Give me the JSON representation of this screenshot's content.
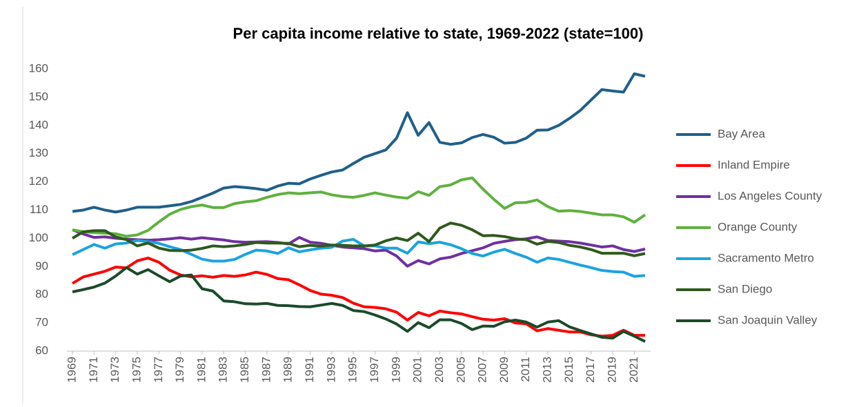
{
  "chart_data": {
    "type": "line",
    "title": "Per capita income relative to state, 1969-2022 (state=100)",
    "x": [
      1969,
      1970,
      1971,
      1972,
      1973,
      1974,
      1975,
      1976,
      1977,
      1978,
      1979,
      1980,
      1981,
      1982,
      1983,
      1984,
      1985,
      1986,
      1987,
      1988,
      1989,
      1990,
      1991,
      1992,
      1993,
      1994,
      1995,
      1996,
      1997,
      1998,
      1999,
      2000,
      2001,
      2002,
      2003,
      2004,
      2005,
      2006,
      2007,
      2008,
      2009,
      2010,
      2011,
      2012,
      2013,
      2014,
      2015,
      2016,
      2017,
      2018,
      2019,
      2020,
      2021,
      2022
    ],
    "xlim": [
      1969,
      2022
    ],
    "xticks": [
      1969,
      1971,
      1973,
      1975,
      1977,
      1979,
      1981,
      1983,
      1985,
      1987,
      1989,
      1991,
      1993,
      1995,
      1997,
      1999,
      2001,
      2003,
      2005,
      2007,
      2009,
      2011,
      2013,
      2015,
      2017,
      2019,
      2021
    ],
    "ylim": [
      60,
      160
    ],
    "yticks": [
      60,
      70,
      80,
      90,
      100,
      110,
      120,
      130,
      140,
      150,
      160
    ],
    "grid": false,
    "legend": "right",
    "series": [
      {
        "name": "Bay Area",
        "color": "#1f5f8b",
        "values": [
          109.5,
          110,
          111,
          110,
          109.3,
          110,
          111,
          111,
          111,
          111.5,
          112,
          113,
          114.5,
          116,
          117.8,
          118.3,
          118,
          117.6,
          117,
          118.5,
          119.5,
          119.3,
          121,
          122.3,
          123.5,
          124.2,
          126.5,
          128.7,
          130,
          131.3,
          135.5,
          144.5,
          136.5,
          141,
          134,
          133.3,
          133.8,
          135.7,
          136.8,
          135.8,
          133.7,
          134,
          135.5,
          138.3,
          138.4,
          140,
          142.5,
          145.3,
          149,
          152.7,
          152.2,
          151.8,
          158.3,
          157.4
        ]
      },
      {
        "name": "Inland Empire",
        "color": "#ff0000",
        "values": [
          84,
          86.3,
          87.3,
          88.3,
          89.8,
          89.5,
          92,
          93,
          91.5,
          88.7,
          87,
          86.3,
          86.7,
          86.2,
          86.8,
          86.5,
          87,
          88,
          87.2,
          85.7,
          85.3,
          83.5,
          81.5,
          80.2,
          79.8,
          79,
          77,
          75.7,
          75.5,
          75,
          73.8,
          71,
          73.7,
          72.5,
          74.2,
          73.6,
          73.2,
          72.2,
          71.3,
          71,
          71.5,
          70,
          69.7,
          67.2,
          68,
          67.4,
          66.8,
          66.8,
          65.8,
          65.3,
          65.6,
          67.4,
          65.6,
          65.6
        ]
      },
      {
        "name": "Los Angeles County",
        "color": "#7030a0",
        "values": [
          103,
          101.5,
          100.3,
          100.5,
          100,
          99.7,
          99.5,
          99.3,
          99.5,
          99.8,
          100.2,
          99.7,
          100.2,
          99.8,
          99.4,
          98.8,
          98.6,
          98.7,
          98.8,
          98.5,
          98,
          100.3,
          98.6,
          98.2,
          97.5,
          96.9,
          96.6,
          96.3,
          95.5,
          95.8,
          93.7,
          90.1,
          92.1,
          90.9,
          92.7,
          93.3,
          94.6,
          95.6,
          96.6,
          98.2,
          98.9,
          99.5,
          99.8,
          100.5,
          99.2,
          99,
          98.8,
          98.3,
          97.6,
          96.9,
          97.3,
          96,
          95.3,
          96.2
        ]
      },
      {
        "name": "Orange County",
        "color": "#5fb13f",
        "values": [
          103,
          102.3,
          102,
          101.8,
          101.6,
          100.7,
          101.2,
          102.8,
          105.8,
          108.5,
          110.2,
          111.2,
          111.8,
          110.9,
          110.9,
          112.3,
          112.9,
          113.3,
          114.5,
          115.5,
          116.1,
          115.8,
          116.1,
          116.4,
          115.4,
          114.8,
          114.5,
          115.2,
          116.1,
          115.3,
          114.6,
          114.2,
          116.5,
          115.2,
          118.3,
          118.9,
          120.7,
          121.4,
          117.4,
          113.8,
          110.6,
          112.6,
          112.7,
          113.6,
          111.2,
          109.6,
          109.8,
          109.5,
          108.9,
          108.3,
          108.3,
          107.6,
          105.7,
          108.3
        ]
      },
      {
        "name": "Sacramento Metro",
        "color": "#1ca3e0",
        "values": [
          94.2,
          96,
          97.8,
          96.5,
          98,
          98.3,
          99.2,
          98.8,
          98.2,
          97,
          96,
          94.3,
          92.6,
          91.9,
          91.9,
          92.5,
          94.3,
          95.8,
          95.5,
          94.6,
          96.6,
          95.2,
          95.9,
          96.5,
          96.8,
          99,
          99.6,
          97.3,
          97.3,
          96.5,
          96.5,
          94.7,
          98.7,
          98.1,
          98.6,
          97.7,
          96.3,
          94.6,
          93.7,
          95.1,
          96.1,
          94.6,
          93.3,
          91.5,
          93,
          92.5,
          91.5,
          90.5,
          89.6,
          88.6,
          88.2,
          88,
          86.5,
          86.8
        ]
      },
      {
        "name": "San Diego",
        "color": "#2f5a1c",
        "values": [
          100,
          102.3,
          102.7,
          102.7,
          100.5,
          99.5,
          97.3,
          98.3,
          96.5,
          95.7,
          95.6,
          95.8,
          96.4,
          97.3,
          97,
          97.3,
          97.8,
          98.5,
          98.3,
          98.3,
          98.2,
          97,
          97.5,
          97.2,
          97.6,
          97.5,
          97.3,
          97.3,
          97.6,
          99.1,
          100.1,
          99.2,
          101.8,
          98.8,
          103.6,
          105.4,
          104.6,
          103,
          100.9,
          101,
          100.6,
          99.8,
          99.5,
          97.9,
          98.9,
          98.5,
          97.5,
          96.9,
          96,
          94.7,
          94.7,
          94.7,
          93.8,
          94.6
        ]
      },
      {
        "name": "San Joaquin Valley",
        "color": "#1b4a2a",
        "values": [
          81,
          81.8,
          82.7,
          84.1,
          86.6,
          89.6,
          87.3,
          88.9,
          86.7,
          84.6,
          86.6,
          87,
          82.1,
          81.3,
          77.8,
          77.5,
          76.8,
          76.7,
          76.9,
          76.2,
          76.1,
          75.8,
          75.7,
          76.3,
          76.9,
          76.2,
          74.4,
          74,
          72.8,
          71.4,
          69.6,
          67,
          70.1,
          68.3,
          71.1,
          71.1,
          69.8,
          67.6,
          68.9,
          68.8,
          70.4,
          71,
          70.3,
          68.5,
          70.3,
          70.8,
          68.6,
          67.3,
          66.1,
          64.9,
          64.6,
          67,
          65.3,
          63.4
        ]
      }
    ]
  }
}
